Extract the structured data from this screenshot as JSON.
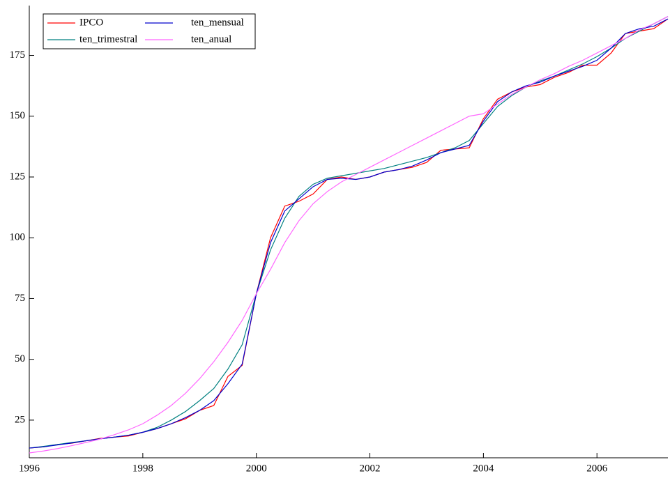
{
  "chart_data": {
    "type": "line",
    "x": [
      1996,
      1996.25,
      1996.5,
      1996.75,
      1997,
      1997.25,
      1997.5,
      1997.75,
      1998,
      1998.25,
      1998.5,
      1998.75,
      1999,
      1999.25,
      1999.5,
      1999.75,
      2000,
      2000.25,
      2000.5,
      2000.75,
      2001,
      2001.25,
      2001.5,
      2001.75,
      2002,
      2002.25,
      2002.5,
      2002.75,
      2003,
      2003.25,
      2003.5,
      2003.75,
      2004,
      2004.25,
      2004.5,
      2004.75,
      2005,
      2005.25,
      2005.5,
      2005.75,
      2006,
      2006.25,
      2006.5,
      2006.75,
      2007,
      2007.25
    ],
    "series": [
      {
        "name": "IPCO",
        "color": "#ff0000",
        "values": [
          13.5,
          14,
          15,
          15.5,
          16.5,
          17.5,
          18,
          18.5,
          20,
          21.5,
          23.5,
          25.5,
          29,
          31,
          43,
          47.5,
          77,
          100,
          113,
          115,
          118,
          124,
          125,
          124,
          125,
          127,
          128,
          129,
          131,
          136,
          136.5,
          137,
          149,
          157,
          160,
          162,
          163,
          166,
          168,
          171,
          171,
          176,
          184,
          185,
          186,
          190
        ]
      },
      {
        "name": "ten_trimestral",
        "color": "#008080",
        "values": [
          13.5,
          14.2,
          15,
          15.8,
          16.5,
          17.3,
          18,
          18.8,
          20,
          22,
          25,
          28.5,
          33,
          38,
          46,
          56,
          77,
          95,
          108,
          117,
          122,
          124.5,
          125.5,
          126.5,
          127.5,
          128.5,
          130,
          131.5,
          133,
          135,
          137,
          140,
          147,
          154,
          158.5,
          162,
          164.5,
          166.5,
          169,
          171.5,
          174.5,
          178,
          182,
          185,
          188,
          191
        ]
      },
      {
        "name": "ten_mensual",
        "color": "#0000cc",
        "values": [
          13.5,
          14,
          14.8,
          15.6,
          16.5,
          17.3,
          18,
          18.8,
          20,
          21.5,
          23.5,
          26,
          29,
          33,
          40,
          48,
          77,
          98,
          111,
          116,
          121,
          124,
          124.5,
          124,
          125,
          127,
          128,
          129.5,
          132,
          135,
          136.5,
          138,
          148,
          156,
          160,
          162.5,
          164,
          166.5,
          168.5,
          170.5,
          173,
          178,
          184,
          186,
          187,
          190
        ]
      },
      {
        "name": "ten_anual",
        "color": "#ff66ff",
        "values": [
          11.5,
          12.3,
          13.3,
          14.5,
          15.8,
          17.2,
          19,
          21,
          23.5,
          27,
          31,
          36,
          42,
          49,
          57,
          66,
          77,
          87,
          98,
          107,
          114,
          119,
          123,
          126,
          129,
          132,
          135,
          138,
          141,
          144,
          147,
          150,
          151,
          155,
          159,
          162,
          165,
          167.5,
          170.5,
          173,
          176,
          179,
          182,
          185.5,
          188,
          191
        ]
      }
    ],
    "xlim": [
      1996,
      2007.25
    ],
    "xticks": [
      1996,
      1998,
      2000,
      2002,
      2004,
      2006
    ],
    "ylim": [
      9.5,
      195.5
    ],
    "yticks": [
      25,
      50,
      75,
      100,
      125,
      150,
      175
    ]
  }
}
